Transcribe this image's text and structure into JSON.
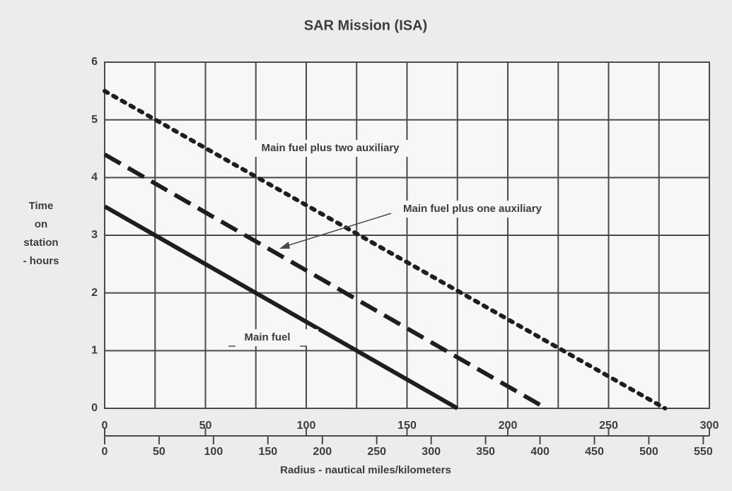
{
  "chart_data": {
    "type": "line",
    "title": "SAR Mission (ISA)",
    "ylabel": [
      "Time",
      "on",
      "station",
      "- hours"
    ],
    "xlabel": "Radius - nautical miles/kilometers",
    "xlim": [
      0,
      300
    ],
    "xticks": [
      0,
      50,
      100,
      150,
      200,
      250,
      300
    ],
    "xminor_ticks": [
      25,
      75,
      125,
      175,
      225,
      275
    ],
    "x2lim": [
      0,
      555.6
    ],
    "x2ticks": [
      0,
      50,
      100,
      150,
      200,
      250,
      300,
      350,
      400,
      450,
      500,
      550
    ],
    "ylim": [
      0,
      6
    ],
    "yticks": [
      0,
      1,
      2,
      3,
      4,
      5,
      6
    ],
    "grid": true,
    "series": [
      {
        "name": "Main fuel",
        "color": "#1e1e1e",
        "style": "solid",
        "x": [
          0,
          175
        ],
        "values": [
          3.5,
          0
        ]
      },
      {
        "name": "Main fuel plus one auxiliary",
        "color": "#1e1e1e",
        "style": "dashed",
        "x": [
          0,
          219
        ],
        "values": [
          4.4,
          0
        ]
      },
      {
        "name": "Main fuel plus two auxiliary",
        "color": "#1e1e1e",
        "style": "dotted",
        "x": [
          0,
          278
        ],
        "values": [
          5.5,
          0
        ]
      }
    ]
  }
}
